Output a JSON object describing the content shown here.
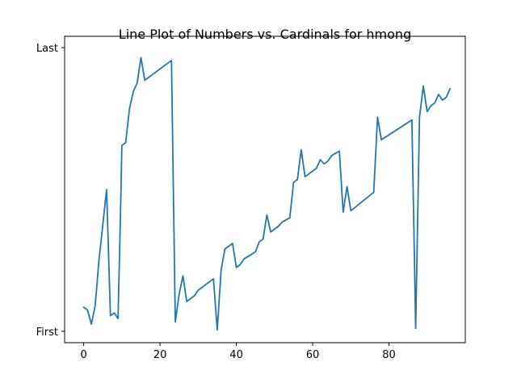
{
  "chart_data": {
    "type": "line",
    "title": "Line Plot of Numbers vs. Cardinals for hmong",
    "xlabel": "",
    "ylabel": "",
    "xlim": [
      -5,
      100
    ],
    "ylim": [
      -0.04,
      1.04
    ],
    "x_ticks": [
      0,
      20,
      40,
      60,
      80
    ],
    "x_tick_labels": [
      "0",
      "20",
      "40",
      "60",
      "80"
    ],
    "y_ticks": [
      0,
      1
    ],
    "y_tick_labels": [
      "First",
      "Last"
    ],
    "grid": false,
    "legend": "none",
    "series": [
      {
        "color": "#1f77b4",
        "points": [
          [
            0,
            0.085
          ],
          [
            1,
            0.075
          ],
          [
            2,
            0.025
          ],
          [
            3,
            0.09
          ],
          [
            4,
            0.25
          ],
          [
            6,
            0.5
          ],
          [
            7,
            0.055
          ],
          [
            8,
            0.065
          ],
          [
            9,
            0.045
          ],
          [
            9.7,
            0.45
          ],
          [
            10,
            0.655
          ],
          [
            11,
            0.665
          ],
          [
            12,
            0.785
          ],
          [
            13,
            0.845
          ],
          [
            14,
            0.875
          ],
          [
            15,
            0.965
          ],
          [
            16,
            0.885
          ],
          [
            23,
            0.955
          ],
          [
            24,
            0.033
          ],
          [
            25,
            0.13
          ],
          [
            26,
            0.195
          ],
          [
            27,
            0.105
          ],
          [
            29,
            0.125
          ],
          [
            30,
            0.145
          ],
          [
            34,
            0.185
          ],
          [
            35,
            0.005
          ],
          [
            36,
            0.215
          ],
          [
            37,
            0.29
          ],
          [
            39,
            0.31
          ],
          [
            40,
            0.225
          ],
          [
            41,
            0.235
          ],
          [
            42,
            0.255
          ],
          [
            45,
            0.28
          ],
          [
            46,
            0.315
          ],
          [
            47,
            0.325
          ],
          [
            48,
            0.41
          ],
          [
            49,
            0.35
          ],
          [
            51,
            0.37
          ],
          [
            52,
            0.385
          ],
          [
            54,
            0.4
          ],
          [
            55,
            0.525
          ],
          [
            56,
            0.535
          ],
          [
            57,
            0.64
          ],
          [
            58,
            0.545
          ],
          [
            61,
            0.575
          ],
          [
            62,
            0.605
          ],
          [
            63,
            0.59
          ],
          [
            64,
            0.6
          ],
          [
            65,
            0.62
          ],
          [
            67,
            0.635
          ],
          [
            68,
            0.42
          ],
          [
            69,
            0.51
          ],
          [
            70,
            0.425
          ],
          [
            76,
            0.49
          ],
          [
            77,
            0.755
          ],
          [
            78,
            0.675
          ],
          [
            86,
            0.745
          ],
          [
            87,
            0.01
          ],
          [
            88,
            0.755
          ],
          [
            89,
            0.865
          ],
          [
            90,
            0.775
          ],
          [
            91,
            0.795
          ],
          [
            92,
            0.805
          ],
          [
            93,
            0.835
          ],
          [
            94,
            0.815
          ],
          [
            95,
            0.825
          ],
          [
            96,
            0.855
          ]
        ]
      }
    ]
  }
}
